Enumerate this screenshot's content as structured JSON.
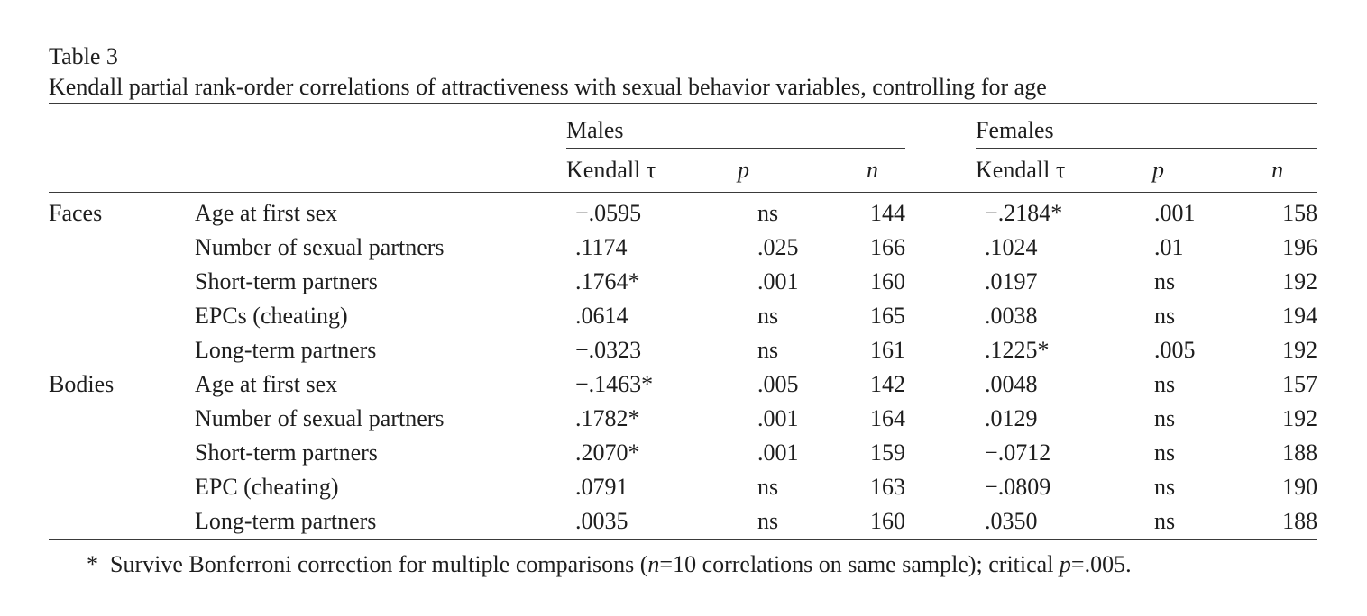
{
  "table": {
    "label": "Table 3",
    "caption": "Kendall partial rank-order correlations of attractiveness with sexual behavior variables, controlling for age",
    "groups": {
      "males": "Males",
      "females": "Females"
    },
    "columns": {
      "tau": "Kendall τ",
      "p": "p",
      "n": "n"
    },
    "sections": [
      {
        "name": "Faces",
        "rows": [
          {
            "variable": "Age at first sex",
            "m_tau": "−.0595",
            "m_p": "ns",
            "m_n": "144",
            "f_tau": "−.2184*",
            "f_p": ".001",
            "f_n": "158"
          },
          {
            "variable": "Number of sexual partners",
            "m_tau": ".1174",
            "m_p": ".025",
            "m_n": "166",
            "f_tau": ".1024",
            "f_p": ".01",
            "f_n": "196"
          },
          {
            "variable": "Short-term partners",
            "m_tau": ".1764*",
            "m_p": ".001",
            "m_n": "160",
            "f_tau": ".0197",
            "f_p": "ns",
            "f_n": "192"
          },
          {
            "variable": "EPCs (cheating)",
            "m_tau": ".0614",
            "m_p": "ns",
            "m_n": "165",
            "f_tau": ".0038",
            "f_p": "ns",
            "f_n": "194"
          },
          {
            "variable": "Long-term partners",
            "m_tau": "−.0323",
            "m_p": "ns",
            "m_n": "161",
            "f_tau": ".1225*",
            "f_p": ".005",
            "f_n": "192"
          }
        ]
      },
      {
        "name": "Bodies",
        "rows": [
          {
            "variable": "Age at first sex",
            "m_tau": "−.1463*",
            "m_p": ".005",
            "m_n": "142",
            "f_tau": ".0048",
            "f_p": "ns",
            "f_n": "157"
          },
          {
            "variable": "Number of sexual partners",
            "m_tau": ".1782*",
            "m_p": ".001",
            "m_n": "164",
            "f_tau": ".0129",
            "f_p": "ns",
            "f_n": "192"
          },
          {
            "variable": "Short-term partners",
            "m_tau": ".2070*",
            "m_p": ".001",
            "m_n": "159",
            "f_tau": "−.0712",
            "f_p": "ns",
            "f_n": "188"
          },
          {
            "variable": "EPC (cheating)",
            "m_tau": ".0791",
            "m_p": "ns",
            "m_n": "163",
            "f_tau": "−.0809",
            "f_p": "ns",
            "f_n": "190"
          },
          {
            "variable": "Long-term partners",
            "m_tau": ".0035",
            "m_p": "ns",
            "m_n": "160",
            "f_tau": ".0350",
            "f_p": "ns",
            "f_n": "188"
          }
        ]
      }
    ],
    "footnote": {
      "marker": "*",
      "pre": "Survive Bonferroni correction for multiple comparisons (",
      "n_var": "n",
      "mid": "=10 correlations on same sample); critical ",
      "p_var": "p",
      "post": "=.005."
    }
  }
}
